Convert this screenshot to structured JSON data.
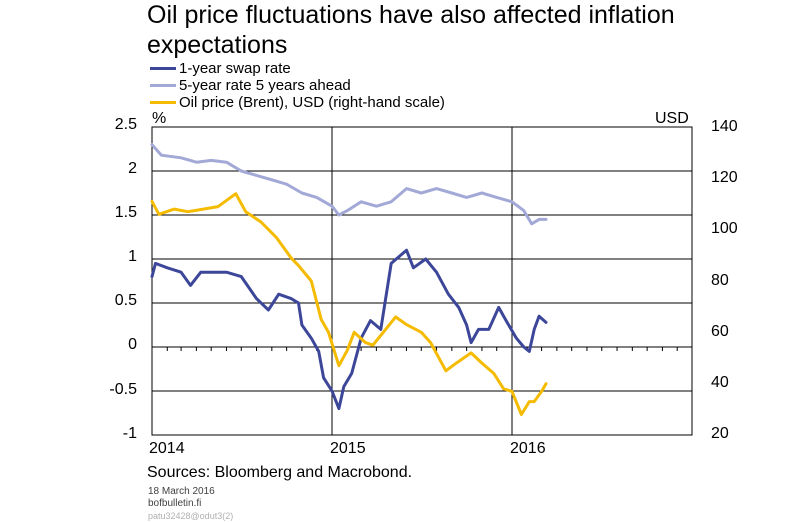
{
  "title": "Oil price fluctuations have also affected inflation expectations",
  "legend": [
    {
      "label": "1-year swap rate",
      "color": "#3d4799"
    },
    {
      "label": "5-year rate 5 years ahead",
      "color": "#a3a9d6"
    },
    {
      "label": "Oil price (Brent), USD (right-hand scale)",
      "color": "#f5bb00"
    }
  ],
  "left_unit": "%",
  "right_unit": "USD",
  "left_ticks": [
    "2.5",
    "2",
    "1.5",
    "1",
    "0.5",
    "0",
    "-0.5",
    "-1"
  ],
  "right_ticks": [
    "140",
    "120",
    "100",
    "80",
    "60",
    "40",
    "20"
  ],
  "x_ticks": [
    "2014",
    "2015",
    "2016"
  ],
  "footer": {
    "source": "Sources: Bloomberg and Macrobond.",
    "date": "18 March 2016",
    "site": "bofbulletin.fi",
    "code": "patu32428@odut3(2)"
  },
  "chart_data": {
    "type": "line",
    "x_range": [
      "2014-01-01",
      "2016-12-31"
    ],
    "ylim_left": [
      -1,
      2.5
    ],
    "ylim_right": [
      20,
      140
    ],
    "grid": true,
    "series": [
      {
        "name": "1-year swap rate",
        "axis": "left",
        "color": "#3d4799",
        "points": [
          [
            "2014-01-01",
            0.8
          ],
          [
            "2014-01-08",
            0.95
          ],
          [
            "2014-02-01",
            0.9
          ],
          [
            "2014-03-01",
            0.85
          ],
          [
            "2014-03-20",
            0.7
          ],
          [
            "2014-04-10",
            0.85
          ],
          [
            "2014-05-01",
            0.85
          ],
          [
            "2014-06-01",
            0.85
          ],
          [
            "2014-07-01",
            0.8
          ],
          [
            "2014-08-01",
            0.55
          ],
          [
            "2014-08-25",
            0.42
          ],
          [
            "2014-09-15",
            0.6
          ],
          [
            "2014-10-10",
            0.55
          ],
          [
            "2014-10-25",
            0.5
          ],
          [
            "2014-11-01",
            0.25
          ],
          [
            "2014-11-20",
            0.1
          ],
          [
            "2014-12-05",
            -0.05
          ],
          [
            "2014-12-15",
            -0.35
          ],
          [
            "2015-01-01",
            -0.5
          ],
          [
            "2015-01-15",
            -0.7
          ],
          [
            "2015-01-25",
            -0.45
          ],
          [
            "2015-02-10",
            -0.3
          ],
          [
            "2015-03-01",
            0.1
          ],
          [
            "2015-03-20",
            0.3
          ],
          [
            "2015-04-10",
            0.2
          ],
          [
            "2015-05-01",
            0.95
          ],
          [
            "2015-06-01",
            1.1
          ],
          [
            "2015-06-15",
            0.9
          ],
          [
            "2015-07-10",
            1.0
          ],
          [
            "2015-08-01",
            0.85
          ],
          [
            "2015-08-25",
            0.6
          ],
          [
            "2015-09-15",
            0.45
          ],
          [
            "2015-10-01",
            0.25
          ],
          [
            "2015-10-10",
            0.05
          ],
          [
            "2015-10-25",
            0.2
          ],
          [
            "2015-11-15",
            0.2
          ],
          [
            "2015-12-05",
            0.45
          ],
          [
            "2015-12-20",
            0.3
          ],
          [
            "2016-01-10",
            0.1
          ],
          [
            "2016-01-25",
            0.0
          ],
          [
            "2016-02-05",
            -0.05
          ],
          [
            "2016-02-15",
            0.2
          ],
          [
            "2016-02-25",
            0.35
          ],
          [
            "2016-03-10",
            0.28
          ]
        ]
      },
      {
        "name": "5-year rate 5 years ahead",
        "axis": "left",
        "color": "#a3a9d6",
        "points": [
          [
            "2014-01-01",
            2.3
          ],
          [
            "2014-01-20",
            2.18
          ],
          [
            "2014-03-01",
            2.15
          ],
          [
            "2014-04-01",
            2.1
          ],
          [
            "2014-05-01",
            2.12
          ],
          [
            "2014-06-01",
            2.1
          ],
          [
            "2014-07-01",
            2.0
          ],
          [
            "2014-08-01",
            1.95
          ],
          [
            "2014-09-01",
            1.9
          ],
          [
            "2014-10-01",
            1.85
          ],
          [
            "2014-11-01",
            1.75
          ],
          [
            "2014-12-01",
            1.7
          ],
          [
            "2015-01-01",
            1.6
          ],
          [
            "2015-01-15",
            1.5
          ],
          [
            "2015-02-01",
            1.55
          ],
          [
            "2015-03-01",
            1.65
          ],
          [
            "2015-04-01",
            1.6
          ],
          [
            "2015-05-01",
            1.65
          ],
          [
            "2015-06-01",
            1.8
          ],
          [
            "2015-07-01",
            1.75
          ],
          [
            "2015-08-01",
            1.8
          ],
          [
            "2015-09-01",
            1.75
          ],
          [
            "2015-10-01",
            1.7
          ],
          [
            "2015-11-01",
            1.75
          ],
          [
            "2015-12-01",
            1.7
          ],
          [
            "2016-01-01",
            1.65
          ],
          [
            "2016-01-25",
            1.55
          ],
          [
            "2016-02-10",
            1.4
          ],
          [
            "2016-02-25",
            1.45
          ],
          [
            "2016-03-10",
            1.45
          ]
        ]
      },
      {
        "name": "Oil price (Brent), USD (right-hand scale)",
        "axis": "right",
        "color": "#f5bb00",
        "points": [
          [
            "2014-01-01",
            111
          ],
          [
            "2014-01-15",
            106
          ],
          [
            "2014-02-15",
            108
          ],
          [
            "2014-03-15",
            107
          ],
          [
            "2014-04-15",
            108
          ],
          [
            "2014-05-15",
            109
          ],
          [
            "2014-06-20",
            114
          ],
          [
            "2014-07-10",
            107
          ],
          [
            "2014-08-10",
            103
          ],
          [
            "2014-09-10",
            97
          ],
          [
            "2014-10-10",
            89
          ],
          [
            "2014-10-25",
            86
          ],
          [
            "2014-11-20",
            80
          ],
          [
            "2014-12-10",
            65
          ],
          [
            "2014-12-25",
            60
          ],
          [
            "2015-01-15",
            47
          ],
          [
            "2015-02-01",
            53
          ],
          [
            "2015-02-15",
            60
          ],
          [
            "2015-03-10",
            56
          ],
          [
            "2015-03-25",
            55
          ],
          [
            "2015-04-15",
            60
          ],
          [
            "2015-05-10",
            66
          ],
          [
            "2015-06-01",
            63
          ],
          [
            "2015-07-01",
            60
          ],
          [
            "2015-07-20",
            56
          ],
          [
            "2015-08-20",
            45
          ],
          [
            "2015-09-10",
            48
          ],
          [
            "2015-10-10",
            52
          ],
          [
            "2015-11-01",
            48
          ],
          [
            "2015-11-25",
            44
          ],
          [
            "2015-12-15",
            38
          ],
          [
            "2016-01-01",
            37
          ],
          [
            "2016-01-20",
            28
          ],
          [
            "2016-02-05",
            33
          ],
          [
            "2016-02-15",
            33
          ],
          [
            "2016-03-01",
            37
          ],
          [
            "2016-03-10",
            40
          ]
        ]
      }
    ]
  }
}
